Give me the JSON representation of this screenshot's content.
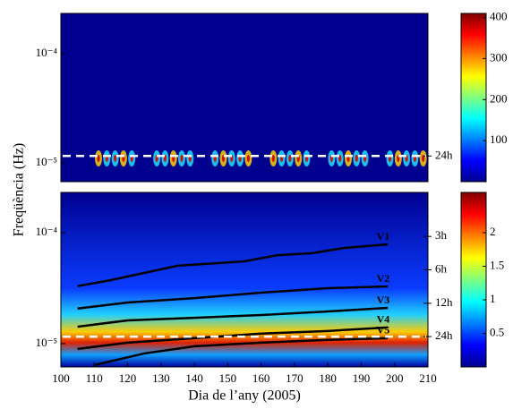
{
  "chart_data": [
    {
      "type": "heatmap",
      "ylabel": "Freqüència (Hz)",
      "log_y": true,
      "xlim": [
        100,
        210
      ],
      "ylim": [
        6.73e-06,
        0.000234
      ],
      "yticks": [
        {
          "value": 0.0001,
          "label": "10⁻⁴"
        },
        {
          "value": 1e-05,
          "label": "10⁻⁵"
        }
      ],
      "y2ticks": [
        {
          "value": 1.157e-05,
          "label": "24h"
        }
      ],
      "clim": [
        0,
        410
      ],
      "cticks": [
        100,
        200,
        300,
        400
      ]
    },
    {
      "type": "heatmap",
      "xlabel": "Dia de l’any (2005)",
      "log_y": true,
      "xlim": [
        100,
        210
      ],
      "xticks": [
        100,
        110,
        120,
        130,
        140,
        150,
        160,
        170,
        180,
        190,
        200,
        210
      ],
      "ylim": [
        6.16e-06,
        0.000231
      ],
      "yticks": [
        {
          "value": 0.0001,
          "label": "10⁻⁴"
        },
        {
          "value": 1e-05,
          "label": "10⁻⁵"
        }
      ],
      "y2ticks": [
        {
          "value": 9.26e-05,
          "label": "3h"
        },
        {
          "value": 4.63e-05,
          "label": "6h"
        },
        {
          "value": 2.31e-05,
          "label": "12h"
        },
        {
          "value": 1.157e-05,
          "label": "24h"
        }
      ],
      "clim": [
        0,
        2.6
      ],
      "cticks": [
        0.5,
        1,
        1.5,
        2
      ],
      "series": [
        {
          "name": "V1",
          "color": "#000000",
          "x": [
            105,
            115,
            135,
            155,
            165,
            175,
            185,
            198
          ],
          "values": [
            3.3e-05,
            3.74e-05,
            5.04e-05,
            5.52e-05,
            6.28e-05,
            6.53e-05,
            7.3e-05,
            7.86e-05
          ]
        },
        {
          "name": "V2",
          "color": "#000000",
          "x": [
            105,
            120,
            140,
            160,
            180,
            198
          ],
          "values": [
            2.07e-05,
            2.35e-05,
            2.57e-05,
            2.88e-05,
            3.16e-05,
            3.28e-05
          ]
        },
        {
          "name": "V3",
          "color": "#000000",
          "x": [
            105,
            120,
            140,
            160,
            180,
            198
          ],
          "values": [
            1.42e-05,
            1.62e-05,
            1.71e-05,
            1.81e-05,
            1.95e-05,
            2.1e-05
          ]
        },
        {
          "name": "V4",
          "color": "#000000",
          "x": [
            105,
            120,
            140,
            160,
            180,
            198
          ],
          "values": [
            8.95e-06,
            1.02e-05,
            1.12e-05,
            1.23e-05,
            1.3e-05,
            1.4e-05
          ]
        },
        {
          "name": "V5",
          "color": "#000000",
          "x": [
            110,
            125,
            140,
            160,
            180,
            198
          ],
          "values": [
            6.4e-06,
            8.15e-06,
            9.46e-06,
            1.02e-05,
            1.08e-05,
            1.12e-05
          ]
        }
      ]
    }
  ]
}
